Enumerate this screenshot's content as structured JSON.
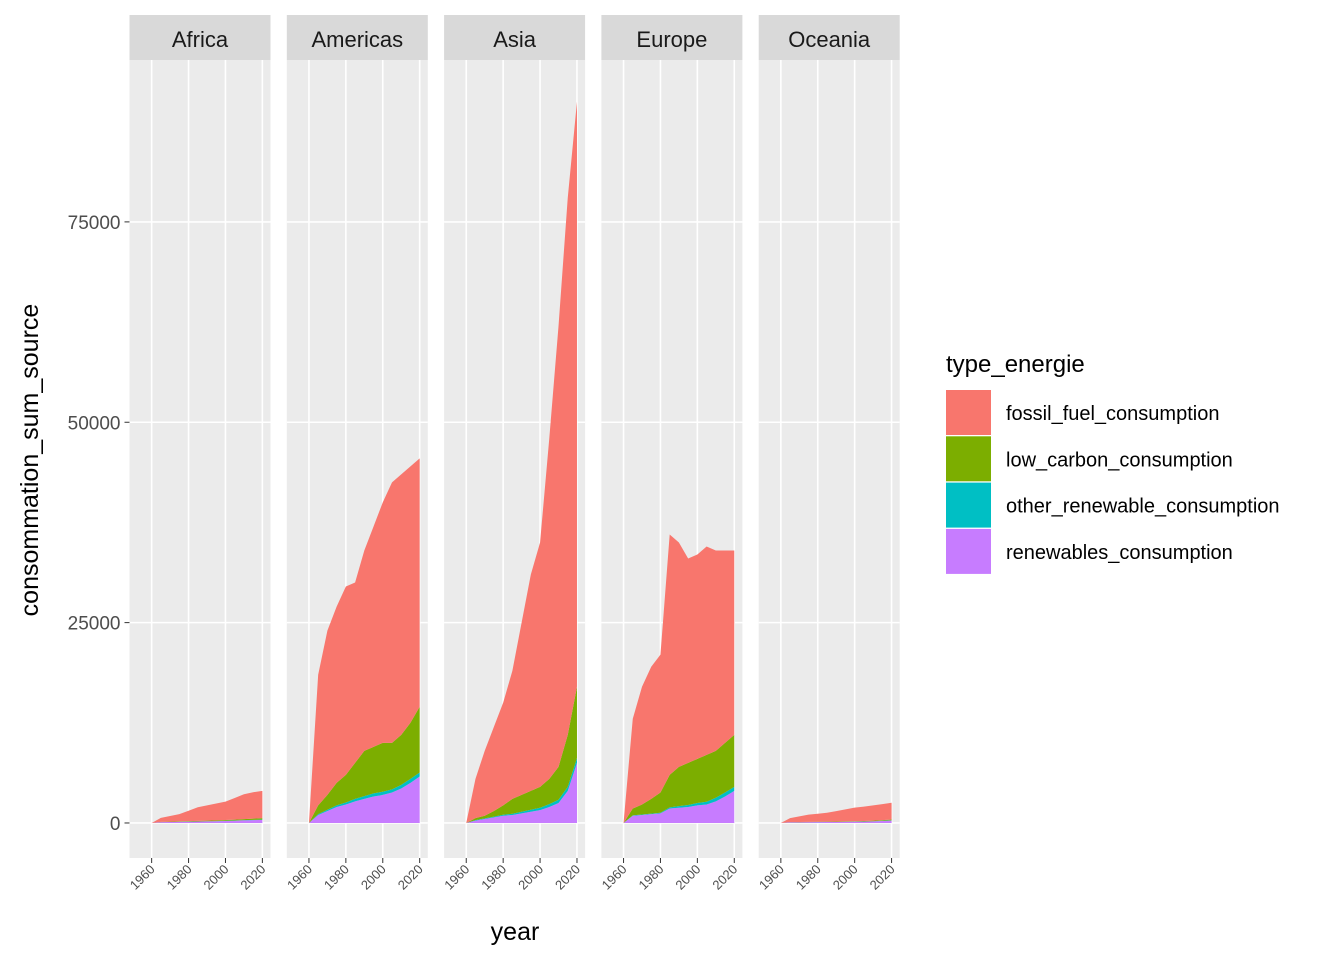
{
  "chart_data": {
    "type": "area",
    "x_label": "year",
    "y_label": "consommation_sum_source",
    "legend_title": "type_energie",
    "x": [
      1950,
      1955,
      1960,
      1965,
      1970,
      1975,
      1980,
      1985,
      1990,
      1995,
      2000,
      2005,
      2010,
      2015,
      2020
    ],
    "xlim": [
      1948,
      2024.4
    ],
    "xticks": [
      1960,
      1980,
      2000,
      2020
    ],
    "ylim": [
      -4370,
      95200
    ],
    "yticks": [
      0,
      25000,
      50000,
      75000
    ],
    "grid": true,
    "series": [
      {
        "name": "fossil_fuel_consumption",
        "color": "#f8766d"
      },
      {
        "name": "low_carbon_consumption",
        "color": "#7cae00"
      },
      {
        "name": "other_renewable_consumption",
        "color": "#00bfc4"
      },
      {
        "name": "renewables_consumption",
        "color": "#c77cff"
      }
    ],
    "facets": [
      {
        "title": "Africa",
        "values": [
          [
            0,
            0,
            0,
            500,
            700,
            900,
            1300,
            1700,
            1900,
            2100,
            2300,
            2700,
            3100,
            3300,
            3400
          ],
          [
            0,
            0,
            0,
            30,
            40,
            50,
            60,
            70,
            80,
            90,
            100,
            110,
            130,
            150,
            180
          ],
          [
            0,
            0,
            0,
            5,
            5,
            10,
            10,
            10,
            15,
            15,
            20,
            25,
            30,
            40,
            50
          ],
          [
            0,
            0,
            0,
            100,
            120,
            140,
            160,
            180,
            200,
            220,
            250,
            280,
            320,
            350,
            380
          ]
        ]
      },
      {
        "title": "Americas",
        "values": [
          [
            0,
            0,
            0,
            16300,
            20500,
            22000,
            23500,
            22500,
            25000,
            27500,
            30000,
            32500,
            32500,
            32000,
            31000
          ],
          [
            0,
            0,
            0,
            1100,
            1850,
            2800,
            3450,
            4500,
            5650,
            5800,
            6100,
            5800,
            6250,
            7000,
            8200
          ],
          [
            0,
            0,
            0,
            100,
            150,
            200,
            250,
            300,
            350,
            400,
            400,
            400,
            450,
            500,
            500
          ],
          [
            0,
            0,
            0,
            1000,
            1500,
            2000,
            2300,
            2700,
            3000,
            3300,
            3500,
            3800,
            4300,
            5000,
            5800
          ]
        ]
      },
      {
        "title": "Asia",
        "values": [
          [
            0,
            0,
            0,
            4900,
            8100,
            10500,
            12800,
            16000,
            21500,
            27000,
            30500,
            42500,
            55000,
            67000,
            73000
          ],
          [
            0,
            0,
            0,
            250,
            320,
            700,
            1180,
            1850,
            2100,
            2350,
            2600,
            3150,
            4100,
            6500,
            8900
          ],
          [
            0,
            0,
            0,
            50,
            80,
            100,
            120,
            150,
            200,
            250,
            300,
            350,
            400,
            500,
            600
          ],
          [
            0,
            0,
            0,
            300,
            500,
            700,
            900,
            1000,
            1200,
            1400,
            1600,
            2000,
            2500,
            4000,
            7500
          ]
        ]
      },
      {
        "title": "Europe",
        "values": [
          [
            0,
            0,
            0,
            11200,
            14700,
            16500,
            17200,
            30000,
            28000,
            25500,
            25500,
            26000,
            25000,
            24000,
            23000
          ],
          [
            0,
            0,
            0,
            850,
            1240,
            1830,
            2520,
            4050,
            4900,
            5250,
            5500,
            5850,
            5850,
            6200,
            6500
          ],
          [
            0,
            0,
            0,
            50,
            60,
            70,
            80,
            150,
            200,
            250,
            300,
            350,
            450,
            500,
            500
          ],
          [
            0,
            0,
            0,
            900,
            1000,
            1100,
            1200,
            1800,
            1900,
            2000,
            2200,
            2300,
            2700,
            3300,
            4000
          ]
        ]
      },
      {
        "title": "Oceania",
        "values": [
          [
            0,
            0,
            0,
            500,
            700,
            900,
            1000,
            1100,
            1300,
            1500,
            1700,
            1800,
            1900,
            2000,
            2100
          ],
          [
            0,
            0,
            0,
            20,
            25,
            30,
            35,
            40,
            45,
            50,
            55,
            60,
            70,
            80,
            100
          ],
          [
            0,
            0,
            0,
            5,
            5,
            5,
            10,
            10,
            10,
            10,
            15,
            15,
            20,
            25,
            30
          ],
          [
            0,
            0,
            0,
            80,
            90,
            100,
            110,
            120,
            130,
            140,
            150,
            170,
            200,
            250,
            300
          ]
        ]
      }
    ]
  }
}
